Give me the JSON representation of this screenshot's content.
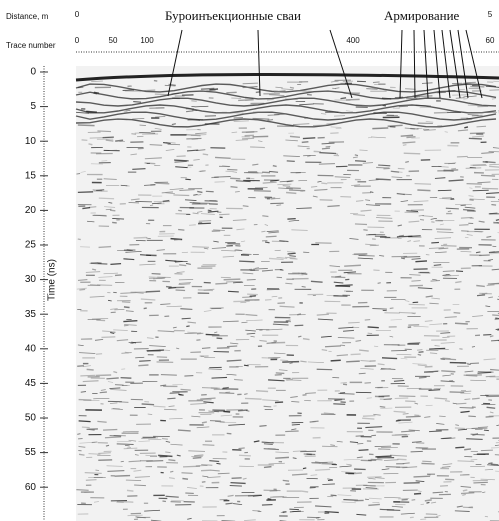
{
  "axes": {
    "distance_label": "Distance, m",
    "distance_ticks": [
      "0",
      "5"
    ],
    "trace_label": "Trace number",
    "trace_ticks": [
      "0",
      "50",
      "100",
      "400",
      "60"
    ],
    "time_label": "Time (ns)",
    "time_ticks": [
      "0",
      "5",
      "10",
      "15",
      "20",
      "25",
      "30",
      "35",
      "40",
      "45",
      "50",
      "55",
      "60"
    ]
  },
  "annotations": [
    "Буроинъекционные сваи",
    "Армирование"
  ]
}
